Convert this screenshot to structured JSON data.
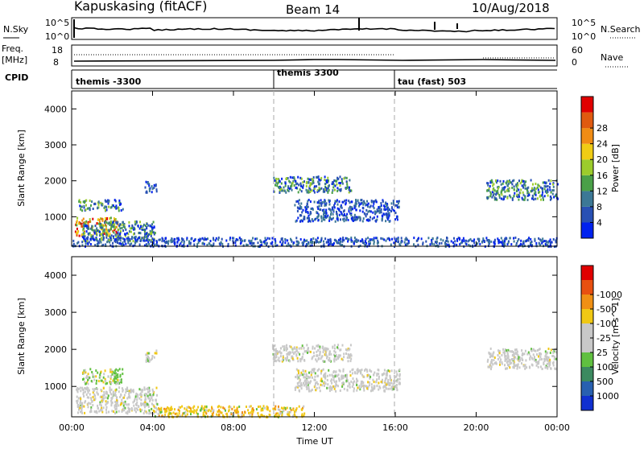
{
  "header": {
    "station": "Kapuskasing (fitACF)",
    "beam": "Beam 14",
    "date": "10/Aug/2018"
  },
  "noise_panel": {
    "left_label": "N.Sky",
    "left_ticks": [
      "10^5",
      "10^0"
    ],
    "right_ticks": [
      "10^5",
      "10^0"
    ],
    "right_label": "N.Search"
  },
  "freq_panel": {
    "left_label_top": "Freq.",
    "left_label_unit": "[MHz]",
    "left_ticks": [
      "18",
      "8"
    ],
    "right_ticks": [
      "60",
      "0"
    ],
    "right_label": "Nave"
  },
  "cpid_panel": {
    "label": "CPID",
    "segments": [
      {
        "label": "themis -3300",
        "start_hour": 0
      },
      {
        "label": "themis 3300",
        "start_hour": 10
      },
      {
        "label": "tau (fast) 503",
        "start_hour": 16
      }
    ]
  },
  "colors": {
    "power": [
      "#0022ee",
      "#2850b4",
      "#3c7896",
      "#4aa048",
      "#9ccc2c",
      "#f0cc14",
      "#f08c14",
      "#e05a10",
      "#e00000"
    ],
    "velocity": [
      "#e00000",
      "#e85010",
      "#f09014",
      "#f0c814",
      "#c8c8c8",
      "#c8c8c8",
      "#60c040",
      "#3c8a60",
      "#2860b0",
      "#1030d0"
    ],
    "echo_grey": "#c8c8c8"
  },
  "chart_data": [
    {
      "type": "heatmap",
      "title": "",
      "xlabel": "",
      "ylabel": "Slant Range [km]",
      "xlim": [
        0,
        24
      ],
      "ylim": [
        180,
        4500
      ],
      "x_ticks": [],
      "y_ticks": [
        "1000",
        "2000",
        "3000",
        "4000"
      ],
      "y_tick_values": [
        1000,
        2000,
        3000,
        4000
      ],
      "colorbar": {
        "label": "Power [dB]",
        "range": [
          0,
          32
        ],
        "tick_labels": [
          "4",
          "8",
          "12",
          "16",
          "20",
          "24",
          "28"
        ]
      },
      "regions": [
        {
          "x_range": [
            0.1,
            2.3
          ],
          "y_range": [
            500,
            1000
          ],
          "level": "high"
        },
        {
          "x_range": [
            0.5,
            4.1
          ],
          "y_range": [
            350,
            900
          ],
          "level": "mid"
        },
        {
          "x_range": [
            0.3,
            2.5
          ],
          "y_range": [
            1200,
            1500
          ],
          "level": "mid"
        },
        {
          "x_range": [
            3.6,
            4.2
          ],
          "y_range": [
            1700,
            2000
          ],
          "level": "low"
        },
        {
          "x_range": [
            9.9,
            13.8
          ],
          "y_range": [
            1700,
            2150
          ],
          "level": "mid"
        },
        {
          "x_range": [
            11.0,
            16.2
          ],
          "y_range": [
            900,
            1500
          ],
          "level": "low"
        },
        {
          "x_range": [
            20.5,
            24.0
          ],
          "y_range": [
            1500,
            2050
          ],
          "level": "mid"
        },
        {
          "x_range": [
            0.0,
            24.0
          ],
          "y_range": [
            200,
            450
          ],
          "level": "low"
        }
      ]
    },
    {
      "type": "heatmap",
      "title": "",
      "xlabel": "Time UT",
      "ylabel": "Slant Range [km]",
      "xlim": [
        0,
        24
      ],
      "ylim": [
        180,
        4500
      ],
      "x_ticks": [
        "00:00",
        "04:00",
        "08:00",
        "12:00",
        "16:00",
        "20:00",
        "00:00"
      ],
      "x_tick_values": [
        0,
        4,
        8,
        12,
        16,
        20,
        24
      ],
      "y_ticks": [
        "1000",
        "2000",
        "3000",
        "4000"
      ],
      "y_tick_values": [
        1000,
        2000,
        3000,
        4000
      ],
      "colorbar": {
        "label": "Velocity [m s^-1]",
        "tick_labels": [
          "-1000",
          "-500",
          "-100",
          "-25",
          "25",
          "100",
          "500",
          "1000"
        ]
      },
      "regions": [
        {
          "x_range": [
            0.2,
            4.2
          ],
          "y_range": [
            300,
            1000
          ],
          "level": "grey"
        },
        {
          "x_range": [
            0.5,
            2.5
          ],
          "y_range": [
            1100,
            1500
          ],
          "level": "green"
        },
        {
          "x_range": [
            3.6,
            4.2
          ],
          "y_range": [
            1700,
            2000
          ],
          "level": "grey"
        },
        {
          "x_range": [
            9.9,
            13.8
          ],
          "y_range": [
            1700,
            2150
          ],
          "level": "grey"
        },
        {
          "x_range": [
            11.0,
            16.2
          ],
          "y_range": [
            900,
            1500
          ],
          "level": "grey"
        },
        {
          "x_range": [
            20.5,
            24.0
          ],
          "y_range": [
            1500,
            2050
          ],
          "level": "grey"
        },
        {
          "x_range": [
            4.0,
            11.5
          ],
          "y_range": [
            200,
            500
          ],
          "level": "orange"
        }
      ]
    }
  ]
}
